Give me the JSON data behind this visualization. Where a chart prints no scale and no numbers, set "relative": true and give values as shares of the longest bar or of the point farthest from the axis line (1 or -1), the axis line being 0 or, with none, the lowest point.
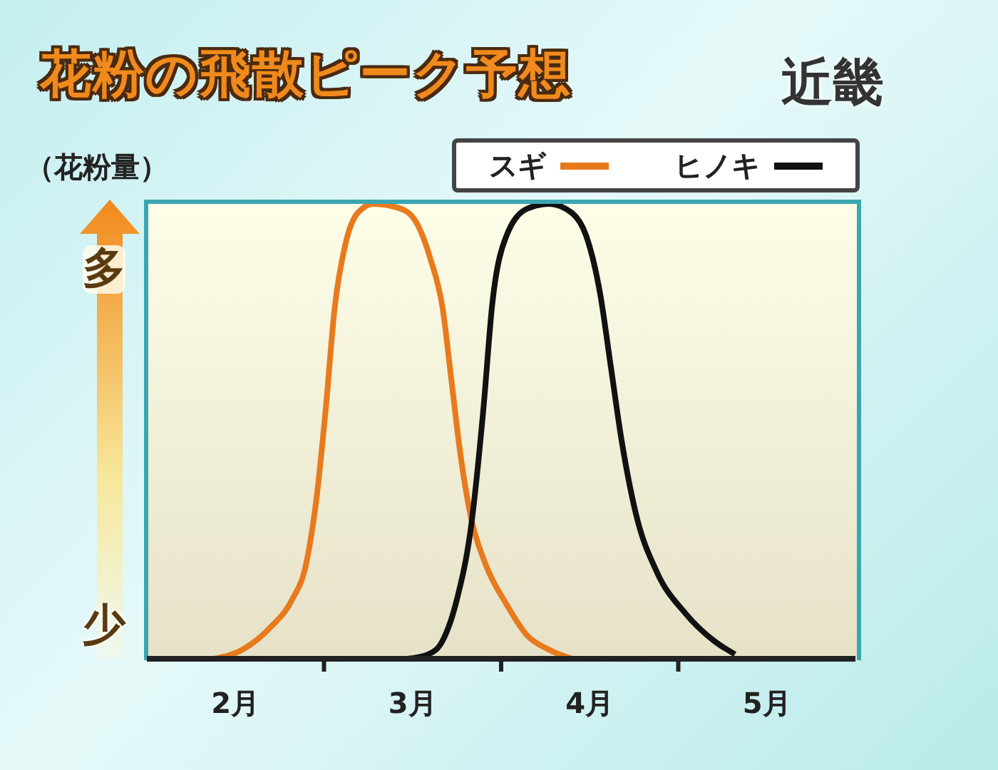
{
  "chart_data": {
    "type": "line",
    "title": "花粉の飛散ピーク予想",
    "subtitle": "近畿",
    "ylabel": "（花粉量）",
    "annotations": [
      "多",
      "少"
    ],
    "relative": true,
    "legend": "top right",
    "xlim": [
      2,
      6
    ],
    "xticks": [
      {
        "value": 2.5,
        "label": "2月"
      },
      {
        "value": 3,
        "label": null
      },
      {
        "value": 3.5,
        "label": "3月"
      },
      {
        "value": 4,
        "label": null
      },
      {
        "value": 4.5,
        "label": "4月"
      },
      {
        "value": 5,
        "label": null
      },
      {
        "value": 5.5,
        "label": "5月"
      }
    ],
    "series": [
      {
        "name": "スギ",
        "color": "#e87a1e",
        "x": [
          2.38,
          2.54,
          2.7,
          2.82,
          2.9,
          2.96,
          3.01,
          3.06,
          3.12,
          3.19,
          3.28,
          3.43,
          3.52,
          3.6,
          3.67,
          3.72,
          3.77,
          3.83,
          3.91,
          4.03,
          4.15,
          4.27,
          4.4
        ],
        "values": [
          0,
          0.02,
          0.07,
          0.13,
          0.21,
          0.36,
          0.55,
          0.77,
          0.91,
          0.98,
          1,
          0.99,
          0.96,
          0.88,
          0.77,
          0.61,
          0.45,
          0.31,
          0.21,
          0.12,
          0.05,
          0.02,
          0
        ]
      },
      {
        "name": "ヒノキ",
        "color": "#111111",
        "x": [
          3.47,
          3.59,
          3.67,
          3.75,
          3.83,
          3.9,
          3.95,
          4.03,
          4.15,
          4.27,
          4.4,
          4.48,
          4.56,
          4.62,
          4.68,
          4.76,
          4.88,
          5.04,
          5.2,
          5.32
        ],
        "values": [
          0,
          0.01,
          0.04,
          0.13,
          0.29,
          0.55,
          0.78,
          0.93,
          0.99,
          1,
          0.98,
          0.93,
          0.8,
          0.64,
          0.48,
          0.32,
          0.19,
          0.1,
          0.04,
          0.01
        ]
      }
    ]
  }
}
